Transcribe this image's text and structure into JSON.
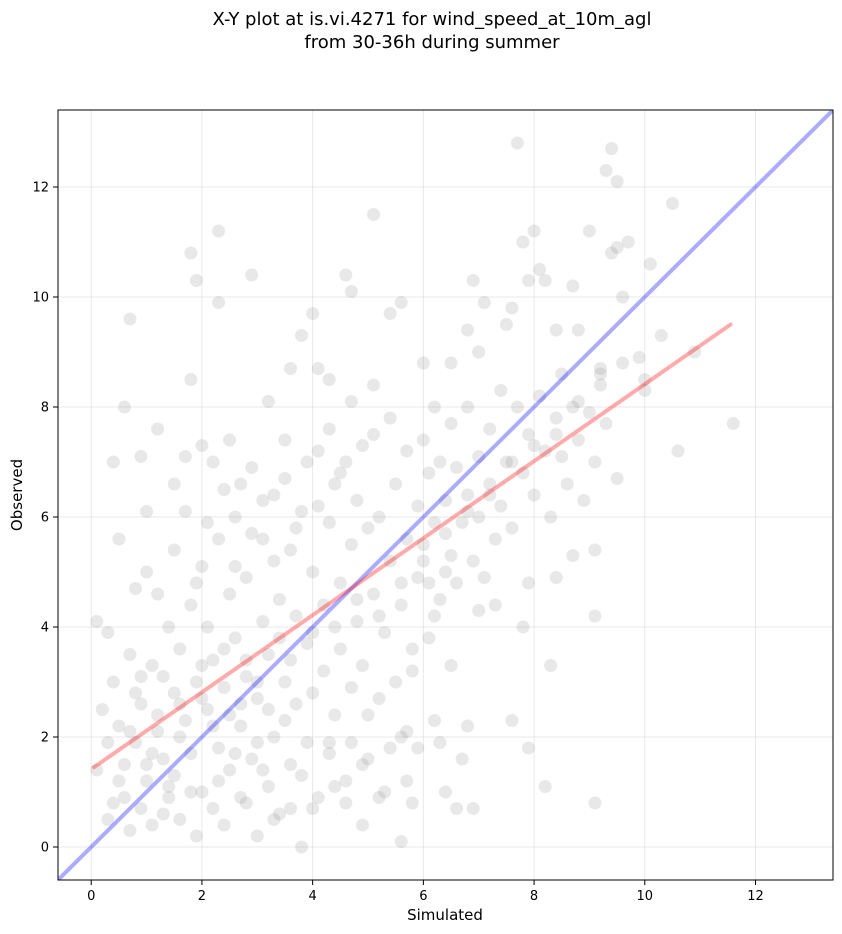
{
  "chart_data": {
    "type": "scatter",
    "title": "X-Y plot at is.vi.4271 for wind_speed_at_10m_agl",
    "subtitle": "from 30-36h during summer",
    "xlabel": "Simulated",
    "ylabel": "Observed",
    "xlim": [
      -0.6,
      13.4
    ],
    "ylim": [
      -0.6,
      13.4
    ],
    "xticks": [
      "0",
      "2",
      "4",
      "6",
      "8",
      "10",
      "12"
    ],
    "yticks": [
      "0",
      "2",
      "4",
      "6",
      "8",
      "10",
      "12"
    ],
    "grid": true,
    "legend": "none",
    "colors": {
      "points": "#808080",
      "identity_line": "#0000ff",
      "fit_line": "#ff0000"
    },
    "reference_line": {
      "x": [
        -0.6,
        13.4
      ],
      "y": [
        -0.6,
        13.4
      ]
    },
    "fit_line": {
      "x": [
        0.05,
        11.55
      ],
      "y": [
        1.45,
        9.5
      ]
    },
    "points": [
      [
        0.1,
        4.1
      ],
      [
        0.3,
        3.9
      ],
      [
        0.4,
        7.0
      ],
      [
        0.5,
        5.6
      ],
      [
        0.6,
        8.0
      ],
      [
        0.7,
        9.6
      ],
      [
        0.8,
        4.7
      ],
      [
        0.9,
        7.1
      ],
      [
        1.0,
        6.1
      ],
      [
        1.2,
        7.6
      ],
      [
        1.3,
        3.1
      ],
      [
        1.5,
        6.6
      ],
      [
        1.7,
        7.1
      ],
      [
        1.8,
        10.8
      ],
      [
        1.9,
        10.3
      ],
      [
        2.3,
        11.2
      ],
      [
        2.3,
        9.9
      ],
      [
        2.9,
        10.4
      ],
      [
        1.8,
        8.5
      ],
      [
        2.0,
        7.3
      ],
      [
        2.2,
        7.0
      ],
      [
        2.5,
        7.4
      ],
      [
        2.7,
        6.6
      ],
      [
        3.2,
        8.1
      ],
      [
        3.6,
        8.7
      ],
      [
        3.8,
        9.3
      ],
      [
        4.0,
        9.7
      ],
      [
        4.1,
        8.7
      ],
      [
        4.3,
        8.5
      ],
      [
        4.6,
        10.4
      ],
      [
        4.7,
        10.1
      ],
      [
        5.1,
        11.5
      ],
      [
        5.4,
        9.7
      ],
      [
        5.6,
        9.9
      ],
      [
        6.0,
        8.8
      ],
      [
        6.2,
        8.0
      ],
      [
        6.5,
        8.8
      ],
      [
        6.8,
        9.4
      ],
      [
        6.9,
        10.3
      ],
      [
        7.0,
        9.0
      ],
      [
        7.1,
        9.9
      ],
      [
        7.5,
        9.5
      ],
      [
        7.6,
        9.8
      ],
      [
        7.7,
        12.8
      ],
      [
        7.8,
        11.0
      ],
      [
        7.9,
        10.3
      ],
      [
        8.0,
        11.2
      ],
      [
        8.1,
        10.5
      ],
      [
        8.2,
        10.3
      ],
      [
        8.4,
        9.4
      ],
      [
        8.5,
        8.6
      ],
      [
        8.7,
        10.2
      ],
      [
        8.8,
        9.4
      ],
      [
        9.0,
        11.2
      ],
      [
        9.2,
        8.7
      ],
      [
        9.3,
        12.3
      ],
      [
        9.4,
        12.7
      ],
      [
        9.5,
        12.1
      ],
      [
        9.4,
        10.8
      ],
      [
        9.5,
        10.9
      ],
      [
        9.7,
        11.0
      ],
      [
        9.6,
        10.0
      ],
      [
        9.9,
        8.9
      ],
      [
        10.0,
        8.3
      ],
      [
        10.1,
        10.6
      ],
      [
        10.5,
        11.7
      ],
      [
        10.3,
        9.3
      ],
      [
        10.6,
        7.2
      ],
      [
        10.9,
        9.0
      ],
      [
        11.6,
        7.7
      ],
      [
        9.5,
        6.7
      ],
      [
        9.1,
        5.4
      ],
      [
        9.1,
        4.2
      ],
      [
        9.1,
        0.8
      ],
      [
        8.7,
        5.3
      ],
      [
        8.4,
        4.9
      ],
      [
        8.3,
        3.3
      ],
      [
        8.2,
        1.1
      ],
      [
        7.9,
        1.8
      ],
      [
        7.9,
        4.8
      ],
      [
        7.8,
        4.0
      ],
      [
        7.6,
        2.3
      ],
      [
        7.3,
        4.4
      ],
      [
        7.0,
        4.3
      ],
      [
        6.9,
        0.7
      ],
      [
        6.6,
        0.7
      ],
      [
        6.7,
        1.6
      ],
      [
        6.8,
        2.2
      ],
      [
        6.4,
        1.0
      ],
      [
        6.3,
        1.9
      ],
      [
        6.5,
        3.3
      ],
      [
        6.2,
        2.3
      ],
      [
        5.9,
        1.8
      ],
      [
        5.7,
        2.1
      ],
      [
        5.6,
        0.1
      ],
      [
        5.8,
        0.8
      ],
      [
        6.2,
        4.2
      ],
      [
        6.4,
        5.0
      ],
      [
        6.1,
        4.8
      ],
      [
        5.8,
        3.2
      ],
      [
        0.1,
        1.4
      ],
      [
        0.2,
        2.5
      ],
      [
        0.3,
        0.5
      ],
      [
        0.4,
        3.0
      ],
      [
        0.4,
        0.8
      ],
      [
        0.5,
        2.2
      ],
      [
        0.6,
        1.5
      ],
      [
        0.7,
        0.3
      ],
      [
        0.7,
        3.5
      ],
      [
        0.8,
        1.9
      ],
      [
        0.9,
        2.6
      ],
      [
        0.9,
        0.7
      ],
      [
        1.0,
        1.2
      ],
      [
        1.1,
        3.3
      ],
      [
        1.1,
        0.4
      ],
      [
        1.2,
        2.1
      ],
      [
        1.3,
        1.6
      ],
      [
        1.4,
        4.0
      ],
      [
        1.4,
        0.9
      ],
      [
        1.5,
        2.8
      ],
      [
        1.5,
        1.3
      ],
      [
        1.6,
        3.6
      ],
      [
        1.6,
        0.5
      ],
      [
        1.7,
        2.3
      ],
      [
        1.8,
        4.4
      ],
      [
        1.8,
        1.7
      ],
      [
        1.9,
        0.2
      ],
      [
        1.9,
        3.0
      ],
      [
        2.0,
        1.0
      ],
      [
        2.0,
        5.1
      ],
      [
        2.1,
        2.5
      ],
      [
        2.1,
        4.0
      ],
      [
        2.2,
        0.7
      ],
      [
        2.2,
        3.4
      ],
      [
        2.3,
        1.8
      ],
      [
        2.3,
        5.6
      ],
      [
        2.4,
        2.9
      ],
      [
        2.4,
        0.4
      ],
      [
        2.5,
        4.6
      ],
      [
        2.5,
        1.4
      ],
      [
        2.6,
        3.8
      ],
      [
        2.6,
        6.0
      ],
      [
        2.7,
        2.2
      ],
      [
        2.7,
        0.9
      ],
      [
        2.8,
        4.9
      ],
      [
        2.8,
        3.1
      ],
      [
        2.9,
        1.6
      ],
      [
        2.9,
        5.7
      ],
      [
        3.0,
        2.7
      ],
      [
        3.0,
        0.2
      ],
      [
        3.1,
        4.1
      ],
      [
        3.1,
        6.3
      ],
      [
        3.2,
        1.1
      ],
      [
        3.2,
        3.5
      ],
      [
        3.3,
        5.2
      ],
      [
        3.3,
        2.0
      ],
      [
        3.4,
        4.5
      ],
      [
        3.4,
        0.6
      ],
      [
        3.5,
        6.7
      ],
      [
        3.5,
        3.0
      ],
      [
        3.6,
        1.5
      ],
      [
        3.6,
        5.4
      ],
      [
        3.7,
        2.6
      ],
      [
        3.7,
        4.2
      ],
      [
        3.8,
        0.0
      ],
      [
        3.8,
        6.1
      ],
      [
        3.9,
        3.7
      ],
      [
        3.9,
        1.9
      ],
      [
        4.0,
        5.0
      ],
      [
        4.0,
        2.8
      ],
      [
        4.1,
        7.2
      ],
      [
        4.1,
        0.9
      ],
      [
        4.2,
        4.4
      ],
      [
        4.2,
        3.2
      ],
      [
        4.3,
        5.9
      ],
      [
        4.3,
        1.7
      ],
      [
        4.4,
        6.6
      ],
      [
        4.4,
        2.4
      ],
      [
        4.5,
        4.8
      ],
      [
        4.5,
        3.6
      ],
      [
        4.6,
        7.0
      ],
      [
        4.6,
        1.2
      ],
      [
        4.7,
        5.5
      ],
      [
        4.7,
        2.9
      ],
      [
        4.8,
        6.3
      ],
      [
        4.8,
        4.1
      ],
      [
        4.9,
        0.4
      ],
      [
        4.9,
        3.3
      ],
      [
        5.0,
        5.8
      ],
      [
        5.0,
        1.6
      ],
      [
        5.1,
        4.6
      ],
      [
        5.1,
        7.5
      ],
      [
        5.2,
        2.7
      ],
      [
        5.2,
        6.0
      ],
      [
        5.3,
        3.9
      ],
      [
        5.3,
        1.0
      ],
      [
        5.4,
        5.2
      ],
      [
        5.4,
        7.8
      ],
      [
        5.5,
        3.0
      ],
      [
        5.5,
        6.6
      ],
      [
        5.6,
        4.4
      ],
      [
        5.6,
        2.0
      ],
      [
        5.7,
        5.6
      ],
      [
        5.7,
        7.2
      ],
      [
        5.8,
        3.6
      ],
      [
        5.9,
        6.2
      ],
      [
        5.9,
        4.9
      ],
      [
        6.0,
        5.5
      ],
      [
        6.0,
        7.4
      ],
      [
        6.1,
        3.8
      ],
      [
        6.1,
        6.8
      ],
      [
        6.2,
        5.9
      ],
      [
        6.3,
        4.5
      ],
      [
        6.3,
        7.0
      ],
      [
        6.4,
        6.3
      ],
      [
        6.5,
        5.3
      ],
      [
        6.5,
        7.7
      ],
      [
        6.6,
        4.8
      ],
      [
        6.6,
        6.9
      ],
      [
        6.7,
        5.9
      ],
      [
        6.8,
        6.4
      ],
      [
        6.8,
        8.0
      ],
      [
        6.9,
        5.2
      ],
      [
        7.0,
        7.1
      ],
      [
        7.0,
        6.0
      ],
      [
        7.1,
        4.9
      ],
      [
        7.2,
        7.6
      ],
      [
        7.2,
        6.6
      ],
      [
        7.3,
        5.6
      ],
      [
        7.4,
        8.3
      ],
      [
        7.4,
        6.2
      ],
      [
        7.5,
        7.0
      ],
      [
        7.6,
        5.8
      ],
      [
        7.7,
        8.0
      ],
      [
        7.8,
        6.8
      ],
      [
        7.9,
        7.5
      ],
      [
        8.0,
        6.4
      ],
      [
        8.1,
        8.2
      ],
      [
        8.2,
        7.2
      ],
      [
        8.3,
        6.0
      ],
      [
        8.4,
        7.8
      ],
      [
        8.5,
        7.1
      ],
      [
        8.6,
        6.6
      ],
      [
        8.7,
        8.0
      ],
      [
        8.8,
        7.4
      ],
      [
        8.9,
        6.3
      ],
      [
        9.0,
        7.9
      ],
      [
        9.1,
        7.0
      ],
      [
        9.2,
        8.4
      ],
      [
        9.3,
        7.7
      ],
      [
        1.0,
        5.0
      ],
      [
        1.2,
        4.6
      ],
      [
        1.5,
        5.4
      ],
      [
        1.7,
        6.1
      ],
      [
        1.9,
        4.8
      ],
      [
        2.1,
        5.9
      ],
      [
        2.4,
        6.5
      ],
      [
        2.6,
        5.1
      ],
      [
        2.9,
        6.9
      ],
      [
        3.1,
        5.6
      ],
      [
        3.3,
        6.4
      ],
      [
        3.5,
        7.4
      ],
      [
        3.7,
        5.8
      ],
      [
        3.9,
        7.0
      ],
      [
        4.1,
        6.2
      ],
      [
        4.3,
        7.6
      ],
      [
        4.5,
        6.8
      ],
      [
        4.7,
        8.1
      ],
      [
        4.9,
        7.3
      ],
      [
        5.1,
        8.4
      ],
      [
        0.3,
        1.9
      ],
      [
        0.6,
        0.9
      ],
      [
        0.8,
        2.8
      ],
      [
        1.1,
        1.7
      ],
      [
        1.3,
        0.6
      ],
      [
        1.6,
        2.0
      ],
      [
        1.8,
        1.0
      ],
      [
        2.0,
        2.7
      ],
      [
        2.3,
        1.2
      ],
      [
        2.5,
        2.4
      ],
      [
        2.8,
        0.8
      ],
      [
        3.0,
        1.9
      ],
      [
        3.3,
        0.5
      ],
      [
        3.5,
        2.3
      ],
      [
        3.8,
        1.3
      ],
      [
        4.0,
        0.7
      ],
      [
        4.3,
        1.9
      ],
      [
        4.6,
        0.8
      ],
      [
        4.9,
        1.5
      ],
      [
        5.2,
        0.9
      ],
      [
        5.4,
        1.8
      ],
      [
        5.7,
        1.2
      ],
      [
        5.0,
        2.4
      ],
      [
        4.7,
        1.9
      ],
      [
        4.4,
        1.1
      ],
      [
        3.6,
        0.7
      ],
      [
        3.1,
        1.4
      ],
      [
        2.6,
        1.7
      ],
      [
        2.2,
        2.2
      ],
      [
        1.4,
        1.1
      ],
      [
        1.2,
        2.4
      ],
      [
        1.0,
        1.5
      ],
      [
        0.7,
        2.1
      ],
      [
        0.5,
        1.2
      ],
      [
        0.9,
        3.1
      ],
      [
        1.6,
        2.6
      ],
      [
        2.0,
        3.3
      ],
      [
        2.4,
        3.6
      ],
      [
        2.8,
        3.4
      ],
      [
        3.2,
        2.5
      ],
      [
        3.6,
        3.4
      ],
      [
        4.0,
        3.9
      ],
      [
        4.4,
        4.0
      ],
      [
        4.8,
        4.5
      ],
      [
        5.2,
        4.2
      ],
      [
        5.6,
        4.8
      ],
      [
        6.0,
        5.2
      ],
      [
        6.4,
        5.7
      ],
      [
        6.8,
        6.1
      ],
      [
        7.2,
        6.4
      ],
      [
        7.6,
        7.0
      ],
      [
        8.0,
        7.3
      ],
      [
        8.4,
        7.5
      ],
      [
        8.8,
        8.1
      ],
      [
        9.2,
        8.6
      ],
      [
        9.6,
        8.8
      ],
      [
        10.0,
        8.5
      ],
      [
        3.4,
        3.8
      ],
      [
        3.0,
        3.0
      ],
      [
        2.7,
        2.6
      ]
    ]
  }
}
